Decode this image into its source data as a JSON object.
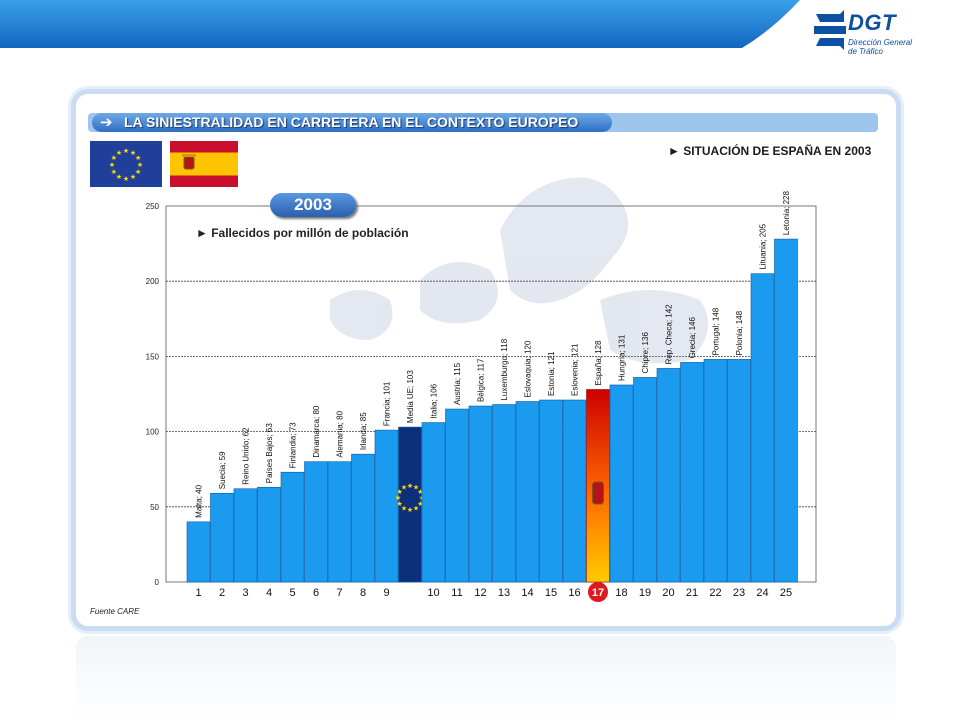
{
  "header": {
    "logo_text": "DGT",
    "logo_sub": "Dirección General de Tráfico"
  },
  "title": {
    "arrow_icon": "➔",
    "text": "LA SINIESTRALIDAD EN CARRETERA EN EL CONTEXTO EUROPEO"
  },
  "subtitle": "► SITUACIÓN DE ESPAÑA EN 2003",
  "year_badge": "2003",
  "legend_label": "► Fallecidos por millón de población",
  "source": "Fuente CARE",
  "colors": {
    "bar": "#1a9bf0",
    "bar_edge": "#0a5aa0",
    "eu_bar": "#0b2f7a",
    "spain_bar_top": "#cc0000",
    "spain_bar_bottom": "#ffcc00",
    "accent": "#2e6fc4"
  },
  "chart_data": {
    "type": "bar",
    "ylim": [
      0,
      250
    ],
    "yticks": [
      0,
      50,
      100,
      150,
      200,
      250
    ],
    "grid": true,
    "title": "Fallecidos por millón de población",
    "xlabel": "",
    "ylabel": "",
    "bars": [
      {
        "label": "Malta; 40",
        "value": 40,
        "rank": "1"
      },
      {
        "label": "Suecia; 59",
        "value": 59,
        "rank": "2"
      },
      {
        "label": "Reino Unido; 62",
        "value": 62,
        "rank": "3"
      },
      {
        "label": "Países Bajos; 63",
        "value": 63,
        "rank": "4"
      },
      {
        "label": "Finlandia; 73",
        "value": 73,
        "rank": "5"
      },
      {
        "label": "Dinamarca; 80",
        "value": 80,
        "rank": "6"
      },
      {
        "label": "Alemania; 80",
        "value": 80,
        "rank": "7"
      },
      {
        "label": "Irlanda; 85",
        "value": 85,
        "rank": "8"
      },
      {
        "label": "Francia; 101",
        "value": 101,
        "rank": "9"
      },
      {
        "label": "Media UE; 103",
        "value": 103,
        "rank": "",
        "kind": "eu"
      },
      {
        "label": "Italia; 106",
        "value": 106,
        "rank": "10"
      },
      {
        "label": "Austria; 115",
        "value": 115,
        "rank": "11"
      },
      {
        "label": "Bélgica; 117",
        "value": 117,
        "rank": "12"
      },
      {
        "label": "Luxemburgo; 118",
        "value": 118,
        "rank": "13"
      },
      {
        "label": "Eslovaquia; 120",
        "value": 120,
        "rank": "14"
      },
      {
        "label": "Estonia; 121",
        "value": 121,
        "rank": "15"
      },
      {
        "label": "Eslovenia; 121",
        "value": 121,
        "rank": "16"
      },
      {
        "label": "España; 128",
        "value": 128,
        "rank": "17",
        "kind": "spain"
      },
      {
        "label": "Hungría; 131",
        "value": 131,
        "rank": "18"
      },
      {
        "label": "Chipre; 136",
        "value": 136,
        "rank": "19"
      },
      {
        "label": "Rep. Checa; 142",
        "value": 142,
        "rank": "20"
      },
      {
        "label": "Grecia; 146",
        "value": 146,
        "rank": "21"
      },
      {
        "label": "Portugal; 148",
        "value": 148,
        "rank": "22"
      },
      {
        "label": "Polonia; 148",
        "value": 148,
        "rank": "23"
      },
      {
        "label": "Lituania; 205",
        "value": 205,
        "rank": "24"
      },
      {
        "label": "Letonia; 228",
        "value": 228,
        "rank": "25"
      }
    ]
  }
}
